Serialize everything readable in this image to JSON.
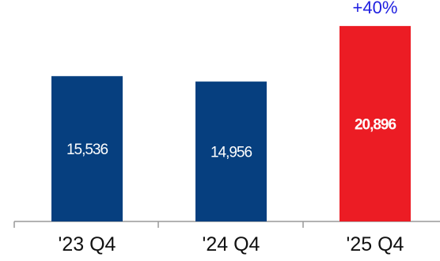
{
  "chart_data": {
    "type": "bar",
    "categories": [
      "'23 Q4",
      "'24 Q4",
      "'25 Q4"
    ],
    "values": [
      15536,
      14956,
      20896
    ],
    "value_labels": [
      "15,536",
      "14,956",
      "20,896"
    ],
    "bar_colors": [
      "#063f7f",
      "#063f7f",
      "#ec1c24"
    ],
    "annotation": {
      "text": "+40%",
      "category": "'25 Q4",
      "color": "#1f1fe0"
    },
    "title": "",
    "xlabel": "",
    "ylabel": "",
    "ylim": [
      0,
      23000
    ],
    "grid": false,
    "legend": "none"
  }
}
